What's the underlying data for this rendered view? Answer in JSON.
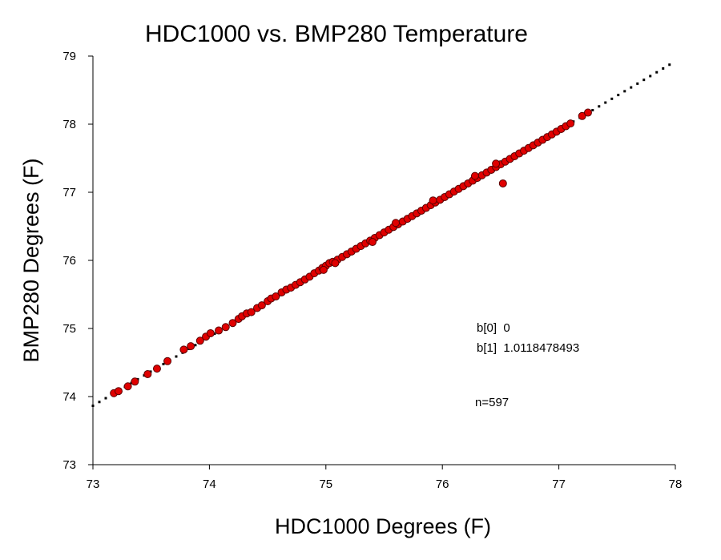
{
  "chart_data": {
    "type": "scatter",
    "title": "HDC1000 vs. BMP280 Temperature",
    "xlabel": "HDC1000 Degrees (F)",
    "ylabel": "BMP280 Degrees (F)",
    "xlim": [
      73,
      78
    ],
    "ylim": [
      73,
      79
    ],
    "xticks": [
      "73",
      "74",
      "75",
      "76",
      "77",
      "78"
    ],
    "yticks": [
      "73",
      "74",
      "75",
      "76",
      "77",
      "78",
      "79"
    ],
    "grid": false,
    "legend": "none",
    "point_color": "#e00000",
    "fit_line": {
      "style": "dotted",
      "color": "#000000",
      "intercept": 0,
      "slope": 1.0118478493,
      "x_range": [
        73,
        78
      ]
    },
    "annotations": {
      "b0": "b[0]  0",
      "b1": "b[1]  1.0118478493",
      "n": "n=597"
    },
    "series": [
      {
        "points": [
          [
            73.18,
            74.05
          ],
          [
            73.22,
            74.08
          ],
          [
            73.3,
            74.15
          ],
          [
            73.36,
            74.22
          ],
          [
            73.47,
            74.33
          ],
          [
            73.55,
            74.41
          ],
          [
            73.64,
            74.52
          ],
          [
            73.78,
            74.69
          ],
          [
            73.84,
            74.74
          ],
          [
            73.92,
            74.82
          ],
          [
            73.97,
            74.88
          ],
          [
            74.01,
            74.93
          ],
          [
            74.08,
            74.97
          ],
          [
            74.14,
            75.02
          ],
          [
            74.2,
            75.08
          ],
          [
            74.25,
            75.14
          ],
          [
            74.28,
            75.18
          ],
          [
            74.32,
            75.22
          ],
          [
            74.36,
            75.24
          ],
          [
            74.41,
            75.3
          ],
          [
            74.45,
            75.34
          ],
          [
            74.5,
            75.4
          ],
          [
            74.53,
            75.44
          ],
          [
            74.57,
            75.47
          ],
          [
            74.62,
            75.53
          ],
          [
            74.66,
            75.57
          ],
          [
            74.7,
            75.6
          ],
          [
            74.74,
            75.64
          ],
          [
            74.78,
            75.68
          ],
          [
            74.82,
            75.72
          ],
          [
            74.86,
            75.76
          ],
          [
            74.9,
            75.81
          ],
          [
            74.94,
            75.85
          ],
          [
            74.97,
            75.89
          ],
          [
            75.0,
            75.92
          ],
          [
            75.03,
            75.96
          ],
          [
            75.06,
            75.98
          ],
          [
            75.1,
            76.01
          ],
          [
            75.14,
            76.05
          ],
          [
            75.18,
            76.09
          ],
          [
            75.22,
            76.13
          ],
          [
            75.26,
            76.17
          ],
          [
            75.3,
            76.21
          ],
          [
            75.34,
            76.25
          ],
          [
            75.38,
            76.29
          ],
          [
            75.42,
            76.33
          ],
          [
            75.46,
            76.37
          ],
          [
            75.5,
            76.41
          ],
          [
            75.54,
            76.45
          ],
          [
            75.58,
            76.49
          ],
          [
            75.62,
            76.53
          ],
          [
            75.66,
            76.57
          ],
          [
            75.7,
            76.61
          ],
          [
            75.74,
            76.65
          ],
          [
            75.78,
            76.69
          ],
          [
            75.82,
            76.73
          ],
          [
            75.86,
            76.77
          ],
          [
            75.9,
            76.81
          ],
          [
            75.94,
            76.85
          ],
          [
            75.98,
            76.89
          ],
          [
            76.02,
            76.93
          ],
          [
            76.06,
            76.97
          ],
          [
            76.1,
            77.01
          ],
          [
            76.14,
            77.05
          ],
          [
            76.18,
            77.09
          ],
          [
            76.22,
            77.13
          ],
          [
            76.26,
            77.17
          ],
          [
            76.3,
            77.21
          ],
          [
            76.34,
            77.25
          ],
          [
            76.38,
            77.29
          ],
          [
            76.42,
            77.33
          ],
          [
            76.46,
            77.37
          ],
          [
            76.5,
            77.41
          ],
          [
            76.54,
            77.45
          ],
          [
            76.58,
            77.49
          ],
          [
            76.62,
            77.53
          ],
          [
            76.66,
            77.57
          ],
          [
            76.7,
            77.61
          ],
          [
            76.74,
            77.65
          ],
          [
            76.78,
            77.69
          ],
          [
            76.82,
            77.73
          ],
          [
            76.86,
            77.77
          ],
          [
            76.9,
            77.81
          ],
          [
            76.94,
            77.85
          ],
          [
            76.98,
            77.89
          ],
          [
            77.02,
            77.93
          ],
          [
            77.06,
            77.97
          ],
          [
            77.1,
            78.01
          ],
          [
            77.2,
            78.12
          ],
          [
            77.25,
            78.17
          ],
          [
            74.98,
            75.86
          ],
          [
            75.08,
            75.96
          ],
          [
            75.4,
            76.27
          ],
          [
            75.6,
            76.55
          ],
          [
            75.92,
            76.88
          ],
          [
            76.28,
            77.24
          ],
          [
            76.46,
            77.42
          ],
          [
            76.52,
            77.13
          ]
        ]
      }
    ]
  }
}
